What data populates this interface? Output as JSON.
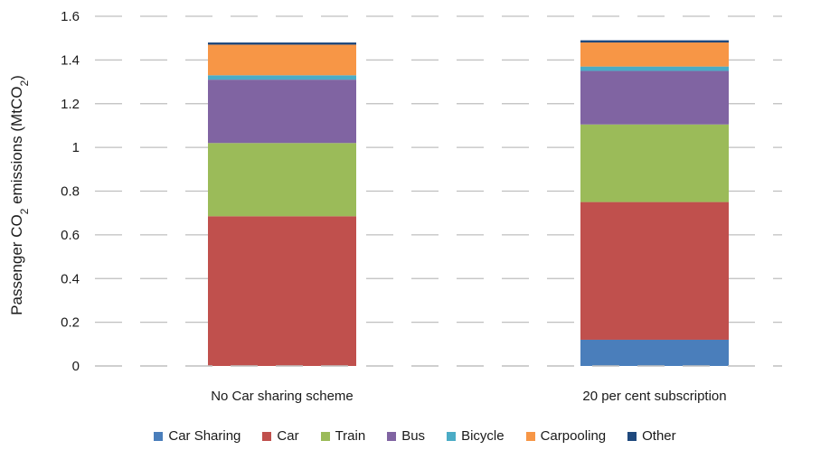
{
  "chart_data": {
    "type": "bar",
    "stacked": true,
    "title": "",
    "xlabel": "",
    "ylabel": "Passenger CO₂ emissions (MtCO₂)",
    "ylabel_parts": [
      {
        "text": "Passenger CO",
        "sub": false
      },
      {
        "text": "2",
        "sub": true
      },
      {
        "text": " emissions (MtCO",
        "sub": false
      },
      {
        "text": "2",
        "sub": true
      },
      {
        "text": ")",
        "sub": false
      }
    ],
    "ylim": [
      0,
      1.6
    ],
    "yticks": [
      0,
      0.2,
      0.4,
      0.6,
      0.8,
      1,
      1.2,
      1.4,
      1.6
    ],
    "ytick_labels": [
      "0",
      "0.2",
      "0.4",
      "0.6",
      "0.8",
      "1",
      "1.2",
      "1.4",
      "1.6"
    ],
    "grid": true,
    "grid_style": "dashed",
    "legend_position": "bottom",
    "categories": [
      "No Car sharing scheme",
      "20 per cent subscription"
    ],
    "series": [
      {
        "name": "Car Sharing",
        "color": "#4a7ebb",
        "values": [
          0,
          0.12
        ]
      },
      {
        "name": "Car",
        "color": "#c0504d",
        "values": [
          0.685,
          0.63
        ]
      },
      {
        "name": "Train",
        "color": "#9bbb59",
        "values": [
          0.335,
          0.355
        ]
      },
      {
        "name": "Bus",
        "color": "#8064a2",
        "values": [
          0.29,
          0.245
        ]
      },
      {
        "name": "Bicycle",
        "color": "#4bacc6",
        "values": [
          0.02,
          0.02
        ]
      },
      {
        "name": "Carpooling",
        "color": "#f79646",
        "values": [
          0.14,
          0.11
        ]
      },
      {
        "name": "Other",
        "color": "#1f497d",
        "values": [
          0.01,
          0.01
        ]
      }
    ]
  }
}
